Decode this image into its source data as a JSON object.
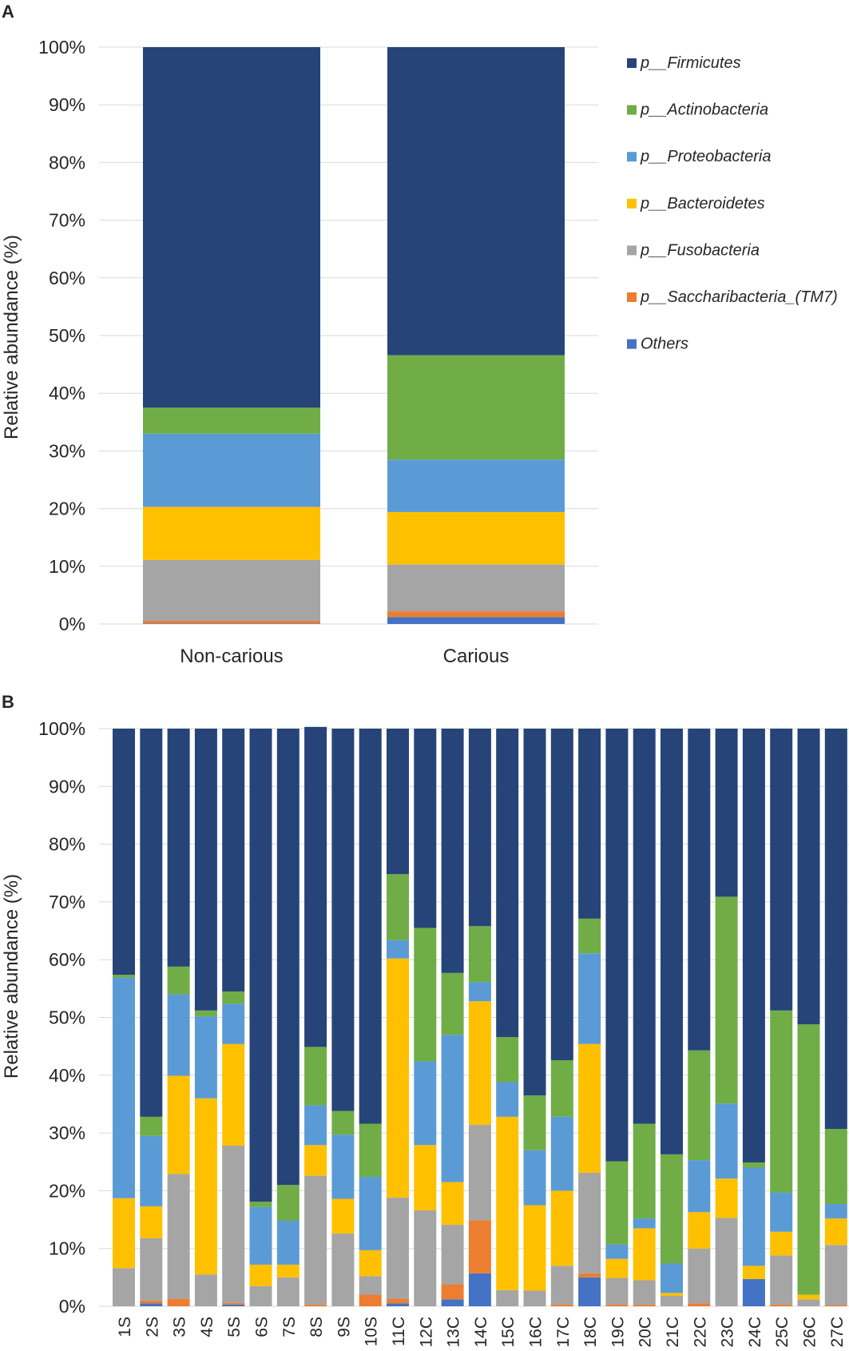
{
  "colors": {
    "firmicutes": "#264478",
    "actinobacteria": "#70AD47",
    "proteobacteria": "#5B9BD5",
    "bacteroidetes": "#FFC000",
    "fusobacteria": "#A5A5A5",
    "saccharibacteria": "#ED7D31",
    "others": "#4472C4",
    "grid": "#D9D9D9"
  },
  "chart_data": [
    {
      "panel": "A",
      "type": "bar",
      "stacked": true,
      "ylabel": "Relative abundance (%)",
      "yticks": [
        "0%",
        "10%",
        "20%",
        "30%",
        "40%",
        "50%",
        "60%",
        "70%",
        "80%",
        "90%",
        "100%"
      ],
      "ylim": [
        0,
        100
      ],
      "categories": [
        "Non-carious",
        "Carious"
      ],
      "legend": [
        {
          "key": "firmicutes",
          "prefix": "p__",
          "name": "Firmicutes"
        },
        {
          "key": "actinobacteria",
          "prefix": "p__",
          "name": "Actinobacteria"
        },
        {
          "key": "proteobacteria",
          "prefix": "p__",
          "name": "Proteobacteria"
        },
        {
          "key": "bacteroidetes",
          "prefix": "p__",
          "name": "Bacteroidetes"
        },
        {
          "key": "fusobacteria",
          "prefix": "p__",
          "name": "Fusobacteria"
        },
        {
          "key": "saccharibacteria",
          "prefix": "p__",
          "name": "Saccharibacteria_(TM7)"
        },
        {
          "key": "others",
          "prefix": "",
          "name": "Others"
        }
      ],
      "series": [
        {
          "key": "others",
          "values": [
            0.1,
            1.2
          ]
        },
        {
          "key": "saccharibacteria",
          "values": [
            0.5,
            1.0
          ]
        },
        {
          "key": "fusobacteria",
          "values": [
            10.5,
            8.1
          ]
        },
        {
          "key": "bacteroidetes",
          "values": [
            9.2,
            9.1
          ]
        },
        {
          "key": "proteobacteria",
          "values": [
            12.7,
            9.1
          ]
        },
        {
          "key": "actinobacteria",
          "values": [
            4.5,
            18.1
          ]
        },
        {
          "key": "firmicutes",
          "values": [
            62.5,
            53.4
          ]
        }
      ]
    },
    {
      "panel": "B",
      "type": "bar",
      "stacked": true,
      "ylabel": "Relative abundance (%)",
      "yticks": [
        "0%",
        "10%",
        "20%",
        "30%",
        "40%",
        "50%",
        "60%",
        "70%",
        "80%",
        "90%",
        "100%"
      ],
      "ylim": [
        0,
        100
      ],
      "categories": [
        "1S",
        "2S",
        "3S",
        "4S",
        "5S",
        "6S",
        "7S",
        "8S",
        "9S",
        "10S",
        "11C",
        "12C",
        "13C",
        "14C",
        "15C",
        "16C",
        "17C",
        "18C",
        "19C",
        "20C",
        "21C",
        "22C",
        "23C",
        "24C",
        "25C",
        "26C",
        "27C"
      ],
      "series": [
        {
          "key": "others",
          "values": [
            0,
            0.5,
            0,
            0,
            0.3,
            0,
            0,
            0,
            0,
            0,
            0.5,
            0,
            1.2,
            5.7,
            0,
            0,
            0,
            5.0,
            0,
            0,
            0,
            0,
            0,
            4.7,
            0,
            0,
            0
          ]
        },
        {
          "key": "saccharibacteria",
          "values": [
            0,
            0.5,
            1.3,
            0,
            0.3,
            0,
            0,
            0.3,
            0,
            2.0,
            0.8,
            0,
            2.6,
            9.2,
            0,
            0,
            0.3,
            0.7,
            0.3,
            0.3,
            0,
            0.5,
            0,
            0,
            0.3,
            0,
            0.2
          ]
        },
        {
          "key": "fusobacteria",
          "values": [
            6.6,
            10.8,
            21.6,
            5.5,
            27.2,
            3.5,
            5.0,
            22.3,
            12.6,
            3.2,
            17.5,
            16.6,
            10.3,
            16.5,
            2.8,
            2.7,
            6.7,
            17.4,
            4.6,
            4.2,
            1.8,
            9.5,
            15.3,
            0,
            8.5,
            1.2,
            10.4
          ]
        },
        {
          "key": "bacteroidetes",
          "values": [
            12.1,
            5.5,
            17.0,
            30.5,
            17.6,
            3.7,
            2.2,
            5.3,
            6.0,
            4.5,
            41.4,
            11.3,
            7.4,
            21.4,
            30.0,
            14.8,
            13.0,
            22.3,
            3.3,
            9.0,
            0.5,
            6.3,
            6.8,
            2.3,
            4.1,
            0.8,
            4.6
          ]
        },
        {
          "key": "proteobacteria",
          "values": [
            38.2,
            12.2,
            14.1,
            14.2,
            7.0,
            10.0,
            7.6,
            6.9,
            11.1,
            12.7,
            3.2,
            14.5,
            25.5,
            3.3,
            6.0,
            9.5,
            12.8,
            15.7,
            2.5,
            1.7,
            5.1,
            9.0,
            13.0,
            17.0,
            6.8,
            0,
            2.5
          ]
        },
        {
          "key": "actinobacteria",
          "values": [
            0.5,
            3.3,
            4.8,
            1.0,
            2.1,
            0.9,
            6.2,
            10.1,
            4.1,
            9.2,
            11.4,
            23.1,
            10.7,
            9.7,
            7.8,
            9.5,
            9.8,
            6.0,
            14.4,
            16.4,
            18.9,
            19.0,
            35.8,
            0.9,
            31.5,
            46.8,
            13.0
          ]
        },
        {
          "key": "firmicutes",
          "values": [
            42.6,
            67.2,
            41.2,
            48.8,
            45.5,
            81.9,
            79.0,
            55.4,
            66.2,
            68.4,
            25.2,
            34.5,
            42.3,
            34.2,
            53.4,
            63.5,
            57.4,
            32.9,
            74.9,
            68.4,
            73.7,
            55.7,
            29.1,
            75.1,
            48.8,
            51.2,
            69.3
          ]
        }
      ]
    }
  ]
}
